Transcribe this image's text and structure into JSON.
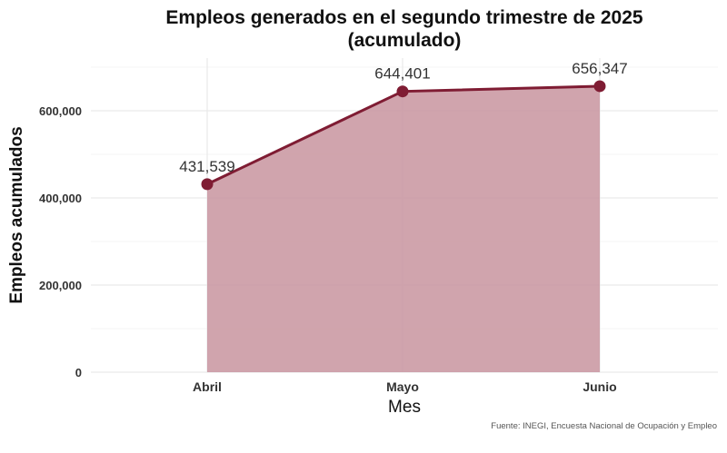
{
  "chart_data": {
    "type": "area",
    "title_lines": [
      "Empleos generados en el segundo trimestre de 2025",
      "(acumulado)"
    ],
    "xlabel": "Mes",
    "ylabel": "Empleos acumulados",
    "categories": [
      "Abril",
      "Mayo",
      "Junio"
    ],
    "values": [
      431539,
      644401,
      656347
    ],
    "data_labels": [
      "431,539",
      "644,401",
      "656,347"
    ],
    "yticks": [
      0,
      200000,
      400000,
      600000
    ],
    "ytick_labels": [
      "0",
      "200,000",
      "400,000",
      "600,000"
    ],
    "ylim": [
      0,
      700000
    ],
    "grid": true,
    "legend": "none",
    "caption": "Fuente: INEGI, Encuesta Nacional de Ocupación y Empleo",
    "colors": {
      "line": "#7f1c33",
      "fill": "#c8949f",
      "grid_major": "#e6e6e6",
      "grid_minor": "#f2f2f2"
    }
  }
}
